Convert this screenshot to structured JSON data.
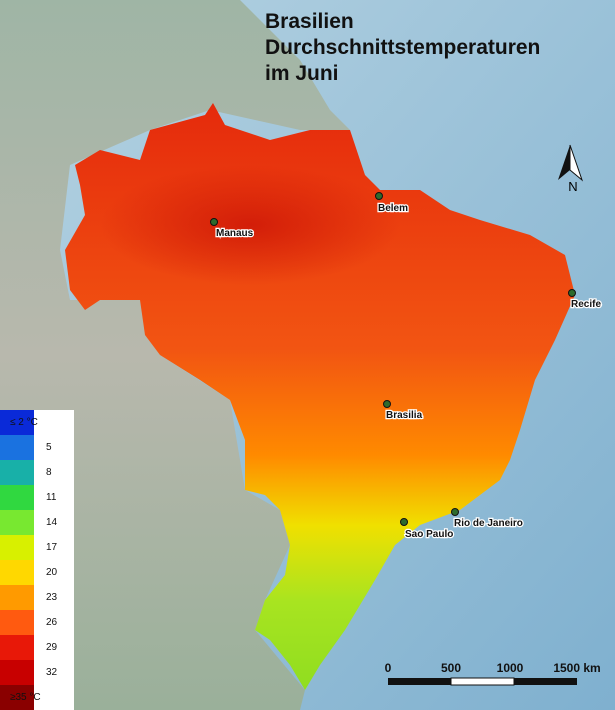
{
  "title": [
    "Brasilien",
    "Durchschnittstemperaturen",
    "im Juni"
  ],
  "legend": [
    {
      "label": "≤ 2 °C",
      "color": "#0a2ad8"
    },
    {
      "label": "5",
      "color": "#1a72e0"
    },
    {
      "label": "8",
      "color": "#18b0a8"
    },
    {
      "label": "11",
      "color": "#30d840"
    },
    {
      "label": "14",
      "color": "#78e830"
    },
    {
      "label": "17",
      "color": "#d8f000"
    },
    {
      "label": "20",
      "color": "#ffd800"
    },
    {
      "label": "23",
      "color": "#ff9a00"
    },
    {
      "label": "26",
      "color": "#ff5a10"
    },
    {
      "label": "29",
      "color": "#e81808"
    },
    {
      "label": "32",
      "color": "#c80000"
    },
    {
      "label": "≥35 °C",
      "color": "#8a0000"
    }
  ],
  "cities": [
    "Manaus",
    "Belem",
    "Recife",
    "Brasilia",
    "Sao Paulo",
    "Rio de Janeiro"
  ],
  "scale": [
    "0",
    "500",
    "1000",
    "1500 km"
  ],
  "north": "N"
}
